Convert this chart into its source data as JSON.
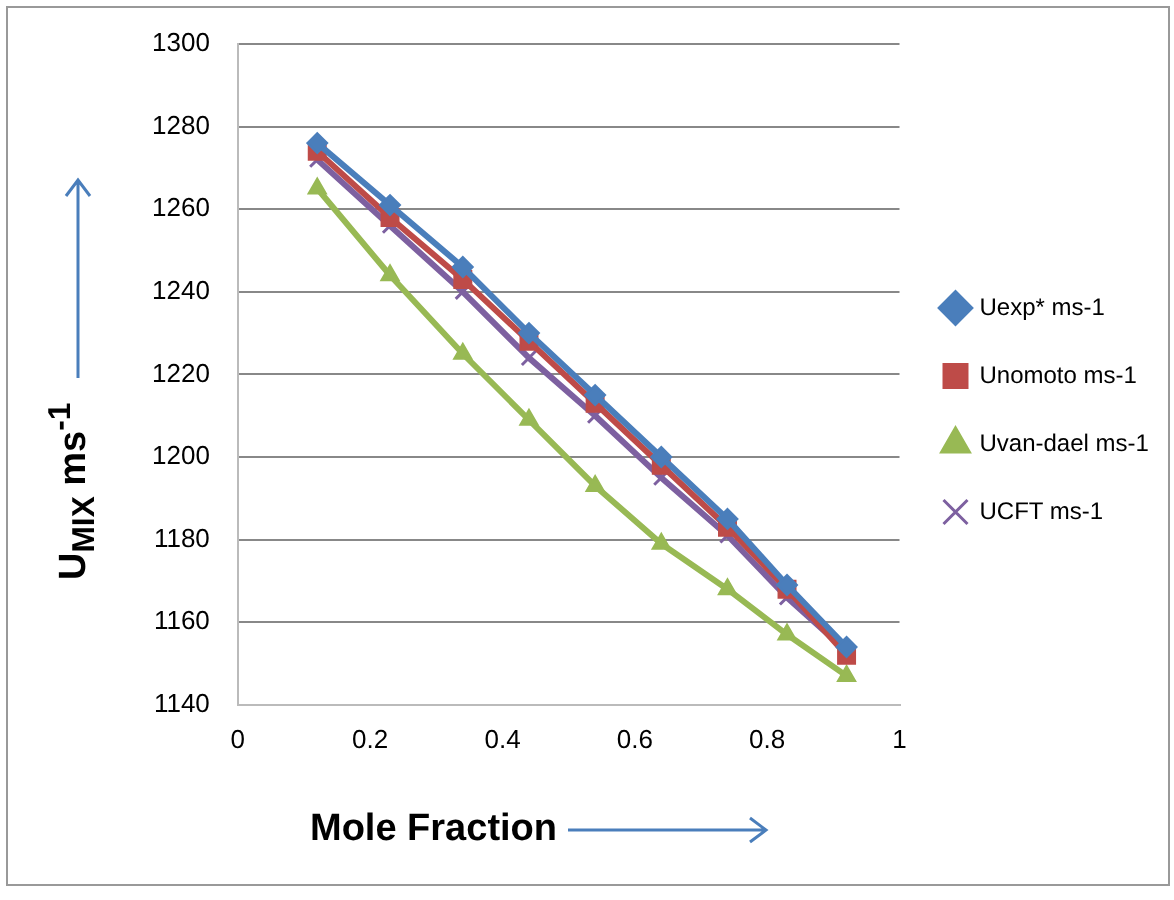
{
  "chart_data": {
    "type": "line",
    "xlabel": "Mole Fraction",
    "ylabel": "U$_{MIX}$ ms$^{-1}$",
    "x": [
      0.12,
      0.23,
      0.34,
      0.44,
      0.54,
      0.64,
      0.74,
      0.83,
      0.92
    ],
    "series": [
      {
        "name": "Uexp* ms-1",
        "color": "#4a7ebb",
        "marker": "diamond",
        "values": [
          1276,
          1261,
          1246,
          1230,
          1215,
          1200,
          1185,
          1169,
          1154
        ]
      },
      {
        "name": "Unomoto ms-1",
        "color": "#be4b48",
        "marker": "square",
        "values": [
          1274,
          1258,
          1243,
          1228,
          1213,
          1198,
          1183,
          1168,
          1152
        ]
      },
      {
        "name": "Uvan-dael ms-1",
        "color": "#98b954",
        "marker": "triangle",
        "values": [
          1265,
          1244,
          1225,
          1209,
          1193,
          1179,
          1168,
          1157,
          1147
        ]
      },
      {
        "name": "UCFT ms-1",
        "color": "#7d60a0",
        "marker": "cross",
        "values": [
          1272,
          1256,
          1240,
          1224,
          1210,
          1195,
          1181,
          1166,
          1153
        ]
      }
    ],
    "xlim": [
      0,
      1
    ],
    "xticks": [
      0,
      0.2,
      0.4,
      0.6,
      0.8,
      1
    ],
    "ylim": [
      1140,
      1300
    ],
    "yticks": [
      1140,
      1160,
      1180,
      1200,
      1220,
      1240,
      1260,
      1280,
      1300
    ],
    "grid": "y",
    "legend": "right"
  }
}
